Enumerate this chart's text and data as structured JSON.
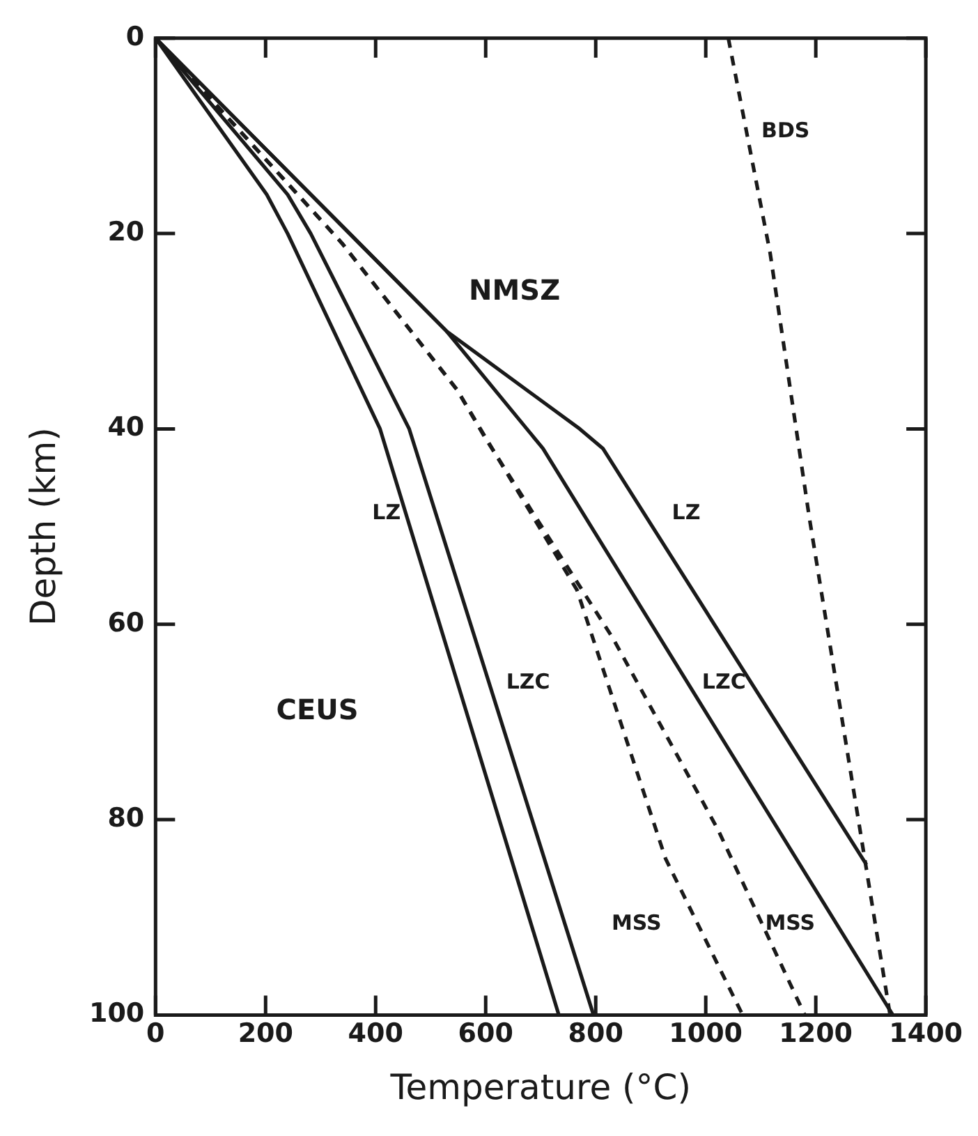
{
  "chart_data": {
    "type": "line",
    "xlabel": "Temperature (°C)",
    "ylabel": "Depth (km)",
    "xlim": [
      0,
      1400
    ],
    "ylim": [
      100,
      0
    ],
    "xticks": [
      0,
      200,
      400,
      600,
      800,
      1000,
      1200,
      1400
    ],
    "yticks": [
      0,
      20,
      40,
      60,
      80,
      100
    ],
    "grid": false,
    "legend": false,
    "marker": "none",
    "series": [
      {
        "name": "LZ",
        "color": "#1a1a1a",
        "line_style": "solid",
        "x": [
          0,
          202,
          240,
          408,
          733
        ],
        "values": [
          0,
          16,
          20,
          40,
          100
        ]
      },
      {
        "name": "LZC",
        "color": "#1a1a1a",
        "line_style": "solid",
        "x": [
          0,
          240,
          282,
          461,
          796
        ],
        "values": [
          0,
          16,
          20,
          40,
          100
        ]
      },
      {
        "name": "MSS",
        "color": "#1a1a1a",
        "line_style": "dashed",
        "x": [
          0,
          339,
          548,
          766,
          927,
          1067
        ],
        "values": [
          0,
          21,
          36,
          56.5,
          84,
          100
        ]
      },
      {
        "name": "MSS",
        "color": "#1a1a1a",
        "line_style": "dashed",
        "x": [
          0,
          339,
          548,
          600,
          832,
          1022,
          1180
        ],
        "values": [
          0,
          21,
          36,
          41,
          61.5,
          81,
          100
        ]
      },
      {
        "name": "LZ",
        "color": "#1a1a1a",
        "line_style": "solid",
        "x": [
          0,
          529,
          771,
          813,
          1292
        ],
        "values": [
          0,
          30,
          40,
          42,
          84.6
        ]
      },
      {
        "name": "LZC",
        "color": "#1a1a1a",
        "line_style": "solid",
        "x": [
          0,
          529,
          704,
          1340
        ],
        "values": [
          0,
          30,
          42,
          100
        ]
      },
      {
        "name": "BDS",
        "color": "#1a1a1a",
        "line_style": "dashed",
        "x": [
          1041,
          1117,
          1188,
          1335
        ],
        "values": [
          0,
          22,
          49,
          100
        ]
      }
    ],
    "annotations": [
      "NMSZ",
      "CEUS"
    ]
  }
}
